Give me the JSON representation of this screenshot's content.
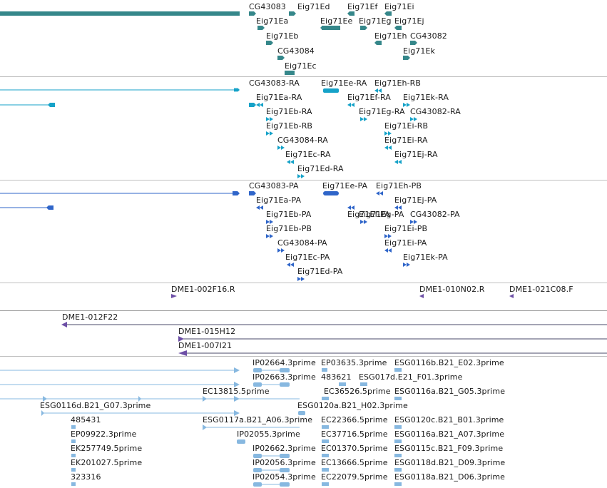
{
  "colors": {
    "gene": "#35878a",
    "transcript": "#15a2c8",
    "protein": "#2f65c9",
    "insertion": "#6d4fa6",
    "est": "#87b8e0",
    "divider": "#bfbfbf"
  },
  "tracks": {
    "genes": {
      "labels": [
        "CG43083",
        "Eig71Ed",
        "Eig71Ef",
        "Eig71Ei",
        "Eig71Ea",
        "Eig71Ee",
        "Eig71Eg",
        "Eig71Ej",
        "Eig71Eb",
        "Eig71Eh",
        "CG43082",
        "CG43084",
        "Eig71Ek",
        "Eig71Ec"
      ]
    },
    "transcripts": {
      "labels": [
        "CG43083-RA",
        "Eig71Ee-RA",
        "Eig71Eh-RB",
        "Eig71Ea-RA",
        "Eig71Ef-RA",
        "Eig71Ek-RA",
        "Eig71Eb-RA",
        "Eig71Eg-RA",
        "CG43082-RA",
        "Eig71Eb-RB",
        "Eig71Ei-RB",
        "CG43084-RA",
        "Eig71Ei-RA",
        "Eig71Ec-RA",
        "Eig71Ej-RA",
        "Eig71Ed-RA"
      ]
    },
    "proteins": {
      "labels": [
        "CG43083-PA",
        "Eig71Ee-PA",
        "Eig71Eh-PB",
        "Eig71Ea-PA",
        "Eig71Ej-PA",
        "Eig71Ef-PA",
        "Eig71Eb-PA",
        "Eig71Eg-PA",
        "CG43082-PA",
        "Eig71Eb-PB",
        "Eig71Ei-PB",
        "CG43084-PA",
        "Eig71Ei-PA",
        "Eig71Ec-PA",
        "Eig71Ek-PA",
        "Eig71Ed-PA"
      ]
    },
    "insertions": {
      "labels": [
        "DME1-002F16.R",
        "DME1-010N02.R",
        "DME1-021C08.F"
      ]
    },
    "clones": {
      "labels": [
        "DME1-012F22",
        "DME1-015H12",
        "DME1-007I21"
      ]
    },
    "ests": {
      "labels": [
        "IP02664.3prime",
        "EP03635.3prime",
        "ESG0116b.B21_E02.3prime",
        "IP02663.3prime",
        "483621",
        "ESG017d.E21_F01.3prime",
        "EC13815.5prime",
        "EC36526.5prime",
        "ESG0116a.B21_G05.3prime",
        "ESG0116d.B21_G07.3prime",
        "ESG0120a.B21_H02.3prime",
        "485431",
        "ESG0117a.B21_A06.3prime",
        "EC22366.5prime",
        "ESG0120c.B21_B01.3prime",
        "EP09922.3prime",
        "IP02055.3prime",
        "EC37716.5prime",
        "ESG0116a.B21_A07.3prime",
        "EK257749.5prime",
        "IP02662.3prime",
        "EC01370.5prime",
        "ESG0115c.B21_F09.3prime",
        "EK201027.5prime",
        "IP02056.3prime",
        "EC13666.5prime",
        "ESG0118d.B21_D09.3prime",
        "323316",
        "IP02054.3prime",
        "EC22079.5prime",
        "ESG0118a.B21_D06.3prime"
      ]
    }
  }
}
